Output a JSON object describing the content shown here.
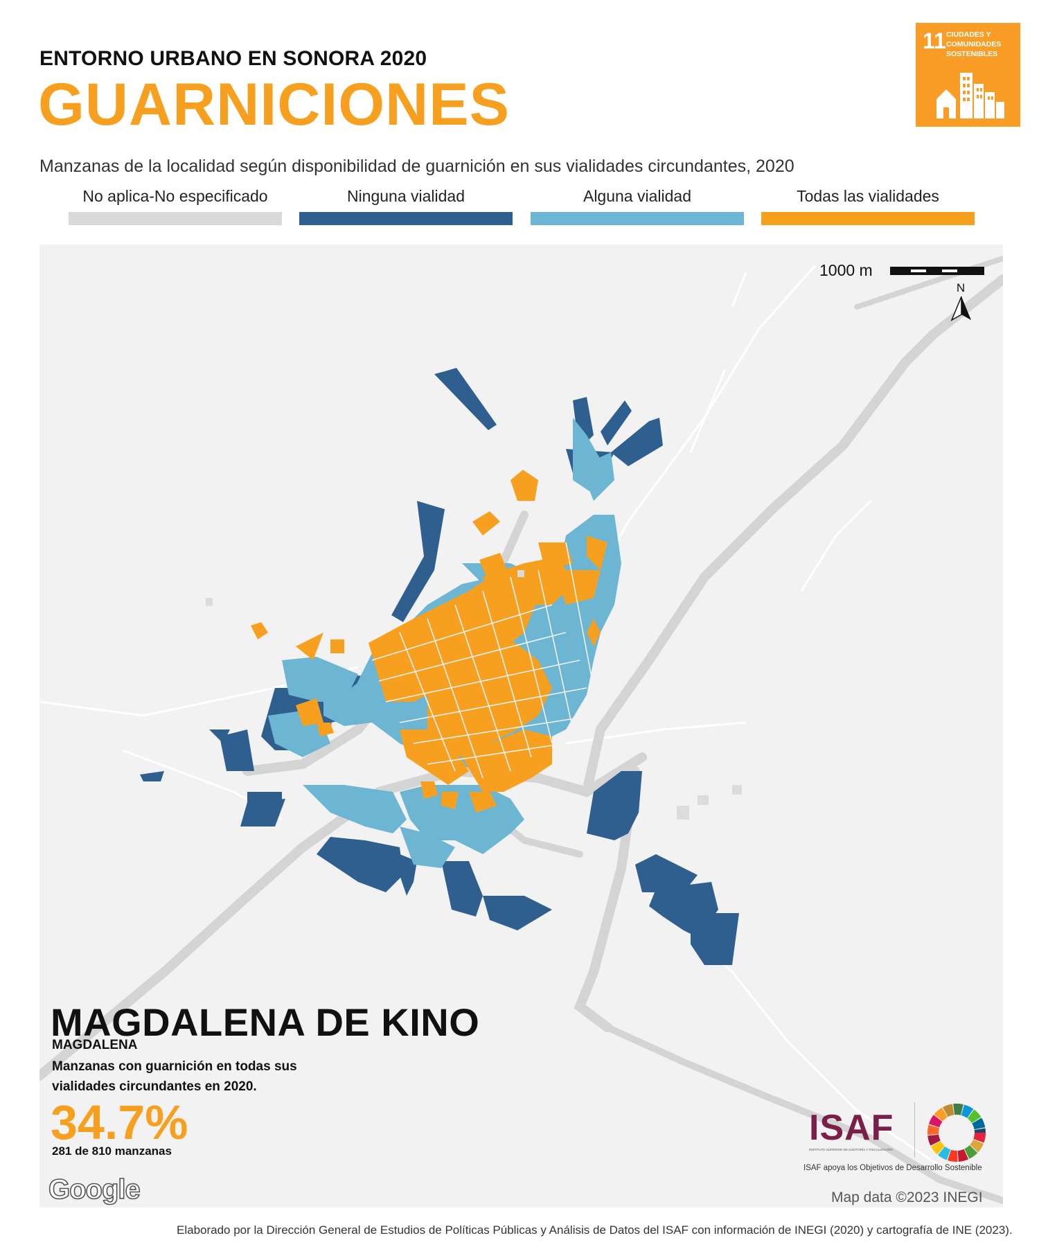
{
  "header": {
    "kicker": "ENTORNO URBANO EN SONORA 2020",
    "title": "GUARNICIONES",
    "subtitle": "Manzanas de la localidad según disponibilidad de guarnición en sus vialidades circundantes, 2020"
  },
  "sdg_badge": {
    "number": "11",
    "text": "CIUDADES Y COMUNIDADES SOSTENIBLES",
    "color": "#F99D26"
  },
  "legend": [
    {
      "label": "No aplica-No especificado",
      "color": "#D9D9D9"
    },
    {
      "label": "Ninguna vialidad",
      "color": "#2F5F8F"
    },
    {
      "label": "Alguna vialidad",
      "color": "#6CB6D3"
    },
    {
      "label": "Todas las vialidades",
      "color": "#F7A01F"
    }
  ],
  "map": {
    "scale_label": "1000 m",
    "north_label": "N",
    "google_logo": "Google",
    "attribution": "Map data ©2023 INEGI"
  },
  "info": {
    "locality": "MAGDALENA DE KINO",
    "municipality": "MAGDALENA",
    "description": "Manzanas con guarnición en todas sus vialidades circundantes en 2020.",
    "percentage": "34.7%",
    "count": "281 de 810 manzanas"
  },
  "logos": {
    "isaf": "ISAF",
    "isaf_subtitle": "INSTITUTO SUPERIOR DE AUDITORÍA Y FISCALIZACIÓN",
    "isaf_note": "ISAF apoya los Objetivos de Desarrollo Sostenible"
  },
  "footer": "Elaborado por la Dirección General de Estudios de Políticas Públicas y Análisis de Datos del ISAF con información de INEGI (2020) y cartografía de INE (2023)."
}
